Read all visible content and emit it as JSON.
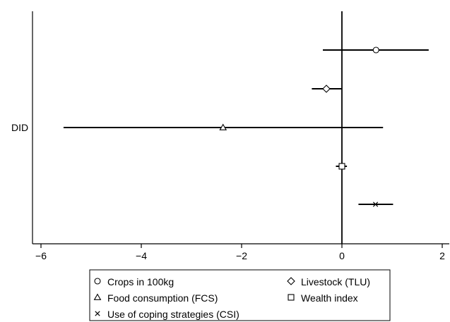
{
  "chart_data": {
    "type": "scatter",
    "subtype": "coefficient-plot",
    "title": "",
    "xlabel": "",
    "ylabel": "",
    "category_label": "DID",
    "xlim": [
      -6.2,
      2.2
    ],
    "x_ticks": [
      -6,
      -4,
      -2,
      0,
      2
    ],
    "x_tick_labels": [
      "−6",
      "−4",
      "−2",
      "0",
      "2"
    ],
    "reference_line": 0,
    "grid": false,
    "legend_placement": "bottom",
    "legend_columns": 2,
    "series": [
      {
        "name": "Crops in 100kg",
        "marker": "circle",
        "estimate": 0.68,
        "ci": [
          -0.38,
          1.73
        ]
      },
      {
        "name": "Livestock (TLU)",
        "marker": "diamond",
        "estimate": -0.31,
        "ci": [
          -0.6,
          0.0
        ]
      },
      {
        "name": "Food consumption (FCS)",
        "marker": "triangle",
        "estimate": -2.37,
        "ci": [
          -5.55,
          0.82
        ]
      },
      {
        "name": "Wealth index",
        "marker": "square",
        "estimate": 0.0,
        "ci": [
          -0.12,
          0.1
        ]
      },
      {
        "name": "Use of coping strategies (CSI)",
        "marker": "cross",
        "estimate": 0.67,
        "ci": [
          0.33,
          1.02
        ]
      }
    ],
    "legend_order": [
      0,
      1,
      2,
      3,
      4
    ]
  }
}
